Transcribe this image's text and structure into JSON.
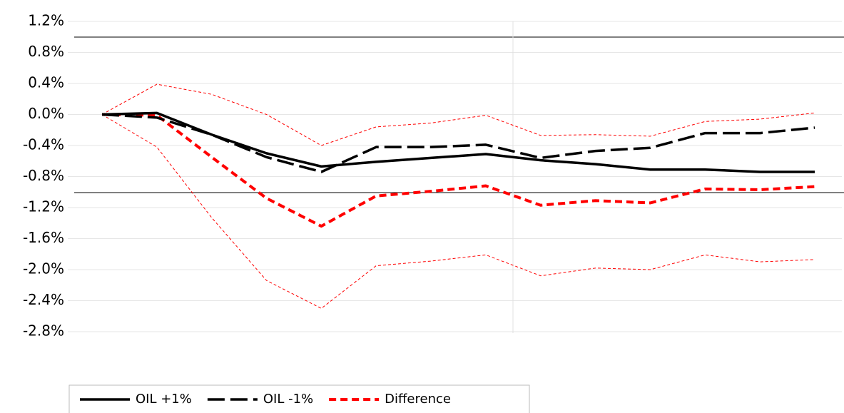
{
  "chart_data": {
    "type": "line",
    "categories": [
      null,
      null,
      null,
      null,
      null,
      null,
      null,
      null,
      null,
      null,
      null,
      null,
      null,
      null
    ],
    "series": [
      {
        "name": "OIL +1%",
        "color": "#000000",
        "style": "solid",
        "values": [
          0,
          0.02,
          -0.26,
          -0.5,
          -0.67,
          -0.61,
          -0.56,
          -0.51,
          -0.59,
          -0.64,
          -0.71,
          -0.71,
          -0.74,
          -0.74
        ]
      },
      {
        "name": "OIL -1%",
        "color": "#000000",
        "style": "long-dash",
        "values": [
          0,
          -0.04,
          -0.26,
          -0.55,
          -0.74,
          -0.42,
          -0.42,
          -0.39,
          -0.56,
          -0.47,
          -0.43,
          -0.24,
          -0.24,
          -0.17
        ]
      },
      {
        "name": "Difference",
        "color": "#ff0000",
        "style": "dash",
        "values": [
          0,
          -0.01,
          -0.55,
          -1.08,
          -1.44,
          -1.05,
          -0.99,
          -0.92,
          -1.17,
          -1.11,
          -1.14,
          -0.96,
          -0.97,
          -0.93
        ]
      },
      {
        "color": "#ff0000",
        "style": "thin-dash",
        "values": [
          0,
          0.39,
          0.26,
          0,
          -0.4,
          -0.16,
          -0.11,
          -0.01,
          -0.27,
          -0.26,
          -0.28,
          -0.09,
          -0.06,
          0.02
        ]
      },
      {
        "color": "#ff0000",
        "style": "thin-dash",
        "values": [
          0,
          -0.42,
          -1.33,
          -2.14,
          -2.5,
          -1.95,
          -1.89,
          -1.81,
          -2.08,
          -1.98,
          -2.0,
          -1.81,
          -1.9,
          -1.87
        ]
      }
    ],
    "ylim": [
      -2.8,
      1.2
    ],
    "yticks": [
      {
        "value": 1.2,
        "label": "1.2%"
      },
      {
        "value": 0.8,
        "label": "0.8%"
      },
      {
        "value": 0.4,
        "label": "0.4%"
      },
      {
        "value": 0.0,
        "label": "0.0%"
      },
      {
        "value": -0.4,
        "label": "-0.4%"
      },
      {
        "value": -0.8,
        "label": "-0.8%"
      },
      {
        "value": -1.2,
        "label": "-1.2%"
      },
      {
        "value": -1.6,
        "label": "-1.6%"
      },
      {
        "value": -2.0,
        "label": "-2.0%"
      },
      {
        "value": -2.4,
        "label": "-2.4%"
      },
      {
        "value": -2.8,
        "label": "-2.8%"
      }
    ],
    "grid": true,
    "legend": "bottom"
  }
}
